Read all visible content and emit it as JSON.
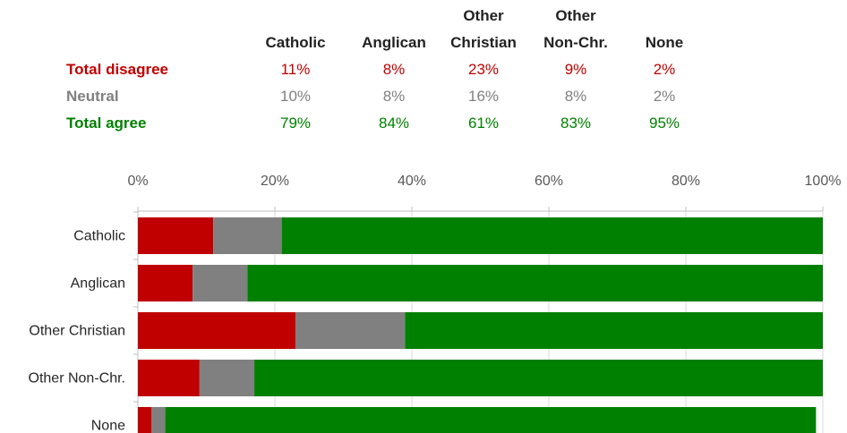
{
  "colors": {
    "disagree": "#c00000",
    "neutral": "#808080",
    "agree": "#008000",
    "header": "#222222"
  },
  "table": {
    "columns": [
      "Catholic",
      "Anglican",
      "Other\nChristian",
      "Other\nNon-Chr.",
      "None"
    ],
    "rows": [
      {
        "label": "Total disagree",
        "color": "#c00000",
        "values": [
          "11%",
          "8%",
          "23%",
          "9%",
          "2%"
        ]
      },
      {
        "label": "Neutral",
        "color": "#808080",
        "values": [
          "10%",
          "8%",
          "16%",
          "8%",
          "2%"
        ]
      },
      {
        "label": "Total agree",
        "color": "#008000",
        "values": [
          "79%",
          "84%",
          "61%",
          "83%",
          "95%"
        ]
      }
    ]
  },
  "chart_data": {
    "type": "bar",
    "orientation": "horizontal",
    "stacked": true,
    "categories": [
      "Catholic",
      "Anglican",
      "Other Christian",
      "Other Non-Chr.",
      "None"
    ],
    "series": [
      {
        "name": "Total disagree",
        "color": "#c00000",
        "values": [
          11,
          8,
          23,
          9,
          2
        ]
      },
      {
        "name": "Neutral",
        "color": "#808080",
        "values": [
          10,
          8,
          16,
          8,
          2
        ]
      },
      {
        "name": "Total agree",
        "color": "#008000",
        "values": [
          79,
          84,
          61,
          83,
          95
        ]
      }
    ],
    "xlim": [
      0,
      100
    ],
    "xticks": [
      0,
      20,
      40,
      60,
      80,
      100
    ],
    "xtick_labels": [
      "0%",
      "20%",
      "40%",
      "60%",
      "80%",
      "100%"
    ],
    "x_axis_position": "top",
    "grid": true,
    "title": "",
    "xlabel": "",
    "ylabel": ""
  }
}
